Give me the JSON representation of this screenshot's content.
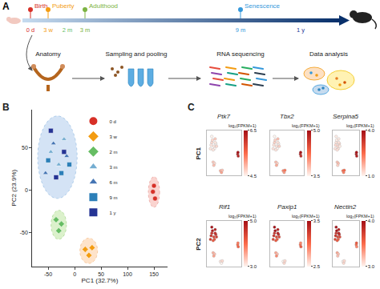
{
  "figure": {
    "A": {
      "label": "A",
      "timeline": [
        {
          "tick": "0 d",
          "stage": "Birth",
          "color": "#d73027"
        },
        {
          "tick": "3 w",
          "stage": "Puberty",
          "color": "#f39c12"
        },
        {
          "tick": "2 m",
          "color": "#66bd63"
        },
        {
          "tick": "3 m",
          "stage": "Adulthood",
          "color": "#7cb342"
        },
        {
          "tick": "9 m",
          "stage": "Senescence",
          "color": "#3498db"
        },
        {
          "tick": "1 y",
          "color": "#253494"
        }
      ],
      "steps": [
        "Anatomy",
        "Sampling and pooling",
        "RNA sequencing",
        "Data analysis"
      ]
    },
    "C": {
      "label": "C"
    }
  },
  "chart_data": [
    {
      "type": "scatter",
      "panel": "B",
      "xlabel": "PC1 (32.7%)",
      "ylabel": "PC2 (23.9%)",
      "xlim": [
        -80,
        175
      ],
      "xticks": [
        -50,
        0,
        50,
        100,
        150
      ],
      "ylim": [
        -90,
        95
      ],
      "yticks": [
        -50,
        0,
        50
      ],
      "grid": false,
      "legend": "top",
      "series": [
        {
          "name": "0 d",
          "color": "#d73027",
          "marker": "circle",
          "x": [
            148,
            152,
            150
          ],
          "y": [
            -2,
            -10,
            5
          ]
        },
        {
          "name": "3 w",
          "color": "#f39c12",
          "marker": "diamond",
          "x": [
            20,
            27,
            33
          ],
          "y": [
            -70,
            -77,
            -68
          ]
        },
        {
          "name": "2 m",
          "color": "#66bd63",
          "marker": "diamond",
          "x": [
            -35,
            -25,
            -30
          ],
          "y": [
            -35,
            -40,
            -48
          ]
        },
        {
          "name": "3 m",
          "color": "#74add1",
          "marker": "triangle-up",
          "x": [
            -45,
            -30,
            -20
          ],
          "y": [
            45,
            30,
            60
          ]
        },
        {
          "name": "6 m",
          "color": "#4575b4",
          "marker": "triangle-up",
          "x": [
            -55,
            -40,
            -15
          ],
          "y": [
            20,
            55,
            40
          ]
        },
        {
          "name": "9 m",
          "color": "#2c7fb8",
          "marker": "square",
          "x": [
            -50,
            -25,
            -10
          ],
          "y": [
            35,
            20,
            30
          ]
        },
        {
          "name": "1 y",
          "color": "#253494",
          "marker": "square",
          "x": [
            -45,
            -35,
            -20
          ],
          "y": [
            70,
            15,
            45
          ]
        }
      ]
    },
    {
      "type": "scatter",
      "row_label": "PC1",
      "title": "Ptk7",
      "xlim": [
        -80,
        175
      ],
      "ylim": [
        -90,
        95
      ],
      "tick_labels": false,
      "values": [
        6.4,
        6.3,
        6.5,
        5.0,
        5.1,
        4.9,
        4.8,
        4.7,
        4.9,
        4.7,
        4.6,
        4.8,
        4.6,
        4.7,
        4.5,
        4.6,
        4.5,
        4.7,
        4.5,
        4.6,
        4.6
      ],
      "colorbar": {
        "title": "log₂(FPKM+1)",
        "range": [
          4.5,
          6.5
        ],
        "ticks": [
          4.5,
          6.5
        ]
      }
    },
    {
      "type": "scatter",
      "row_label": "PC1",
      "title": "Tbx2",
      "xlim": [
        -80,
        175
      ],
      "ylim": [
        -90,
        95
      ],
      "tick_labels": false,
      "values": [
        4.9,
        4.8,
        5.0,
        4.1,
        4.0,
        4.2,
        3.8,
        3.7,
        3.9,
        3.7,
        3.6,
        3.8,
        3.6,
        3.7,
        3.5,
        3.6,
        3.5,
        3.7,
        3.5,
        3.6,
        3.6
      ],
      "colorbar": {
        "title": "log₂(FPKM+1)",
        "range": [
          3.5,
          5.0
        ],
        "ticks": [
          3.5,
          {
            "value": 5,
            "label": "5.0"
          }
        ]
      }
    },
    {
      "type": "scatter",
      "row_label": "PC1",
      "title": "Serpina5",
      "xlim": [
        -80,
        175
      ],
      "ylim": [
        -90,
        95
      ],
      "tick_labels": false,
      "values": [
        3.9,
        3.8,
        4.0,
        2.5,
        2.3,
        2.6,
        1.5,
        1.6,
        1.4,
        1.2,
        1.3,
        1.1,
        1.2,
        1.1,
        1.3,
        1.3,
        1.2,
        1.1,
        1.1,
        1.2,
        1.2
      ],
      "colorbar": {
        "title": "log₂(FPKM+1)",
        "range": [
          1,
          4
        ],
        "ticks": [
          {
            "value": 1,
            "label": "1.0"
          },
          {
            "value": 4,
            "label": "4.0"
          }
        ]
      }
    },
    {
      "type": "scatter",
      "row_label": "PC2",
      "title": "Rif1",
      "xlim": [
        -80,
        175
      ],
      "ylim": [
        -90,
        95
      ],
      "tick_labels": false,
      "values": [
        4.0,
        4.1,
        3.9,
        3.1,
        3.0,
        3.2,
        3.5,
        3.4,
        3.6,
        4.6,
        4.4,
        4.8,
        4.5,
        4.9,
        4.7,
        4.6,
        4.3,
        4.5,
        5.0,
        4.2,
        4.7
      ],
      "colorbar": {
        "title": "log₂(FPKM+1)",
        "range": [
          3,
          5
        ],
        "ticks": [
          {
            "value": 3,
            "label": "3.0"
          },
          {
            "value": 5,
            "label": "5.0"
          }
        ]
      }
    },
    {
      "type": "scatter",
      "row_label": "PC2",
      "title": "Paxip1",
      "xlim": [
        -80,
        175
      ],
      "ylim": [
        -90,
        95
      ],
      "tick_labels": false,
      "values": [
        3.0,
        3.1,
        2.9,
        2.5,
        2.6,
        2.6,
        2.8,
        2.7,
        2.9,
        3.3,
        3.2,
        3.4,
        3.2,
        3.5,
        3.4,
        3.3,
        3.1,
        3.2,
        3.5,
        3.1,
        3.4
      ],
      "colorbar": {
        "title": "log₂(FPKM+1)",
        "range": [
          2.5,
          3.5
        ],
        "ticks": [
          2.5,
          3.5
        ]
      }
    },
    {
      "type": "scatter",
      "row_label": "PC2",
      "title": "Nectin2",
      "xlim": [
        -80,
        175
      ],
      "ylim": [
        -90,
        95
      ],
      "tick_labels": false,
      "values": [
        3.5,
        3.4,
        3.6,
        3.0,
        3.1,
        3.1,
        3.3,
        3.2,
        3.2,
        3.8,
        3.7,
        3.9,
        3.7,
        4.0,
        3.9,
        3.8,
        3.6,
        3.7,
        4.0,
        3.6,
        3.9
      ],
      "colorbar": {
        "title": "log₂(FPKM+1)",
        "range": [
          3,
          4
        ],
        "ticks": [
          {
            "value": 3,
            "label": "3.0"
          },
          {
            "value": 4,
            "label": "4.0"
          }
        ]
      }
    }
  ]
}
